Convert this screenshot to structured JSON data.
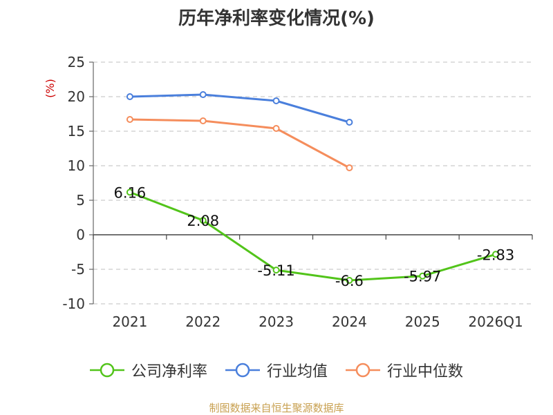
{
  "chart_data": {
    "type": "line",
    "title": "历年净利率变化情况(%)",
    "ylabel": "(%)",
    "categories": [
      "2021",
      "2022",
      "2023",
      "2024",
      "2025",
      "2026Q1"
    ],
    "yticks": [
      "25",
      "20",
      "15",
      "10",
      "5",
      "0",
      "-5",
      "-10"
    ],
    "ylim": [
      -10,
      25
    ],
    "grid": true,
    "legend_position": "bottom",
    "series": [
      {
        "name": "公司净利率",
        "color": "#52c41a",
        "values": [
          6.16,
          2.08,
          -5.11,
          -6.6,
          -5.97,
          -2.83
        ],
        "labels": [
          "6.16",
          "2.08",
          "-5.11",
          "-6.6",
          "-5.97",
          "-2.83"
        ]
      },
      {
        "name": "行业均值",
        "color": "#4a7fdc",
        "values": [
          20.0,
          20.3,
          19.4,
          16.3,
          null,
          null
        ]
      },
      {
        "name": "行业中位数",
        "color": "#f58d5c",
        "values": [
          16.7,
          16.5,
          15.4,
          9.7,
          null,
          null
        ]
      }
    ]
  },
  "source_note": "制图数据来自恒生聚源数据库",
  "ylabel_color": "#cc0000",
  "source_color": "#c8a050"
}
